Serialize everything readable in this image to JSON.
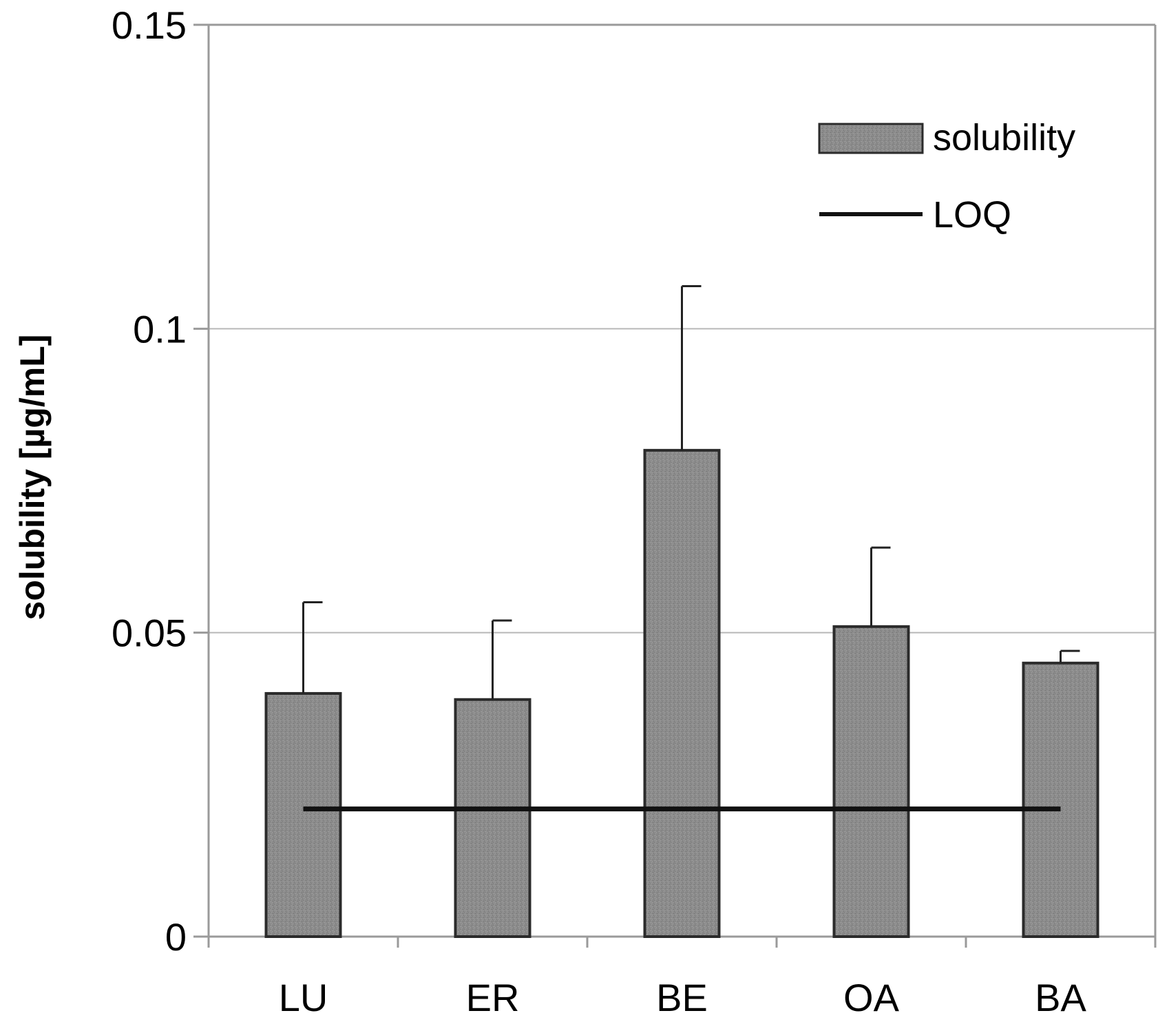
{
  "chart_data": {
    "type": "bar",
    "title": "",
    "xlabel": "",
    "ylabel": "solubility [µg/mL]",
    "ylim": [
      0,
      0.15
    ],
    "yticks": [
      0,
      0.05,
      0.1,
      0.15
    ],
    "ytick_labels": [
      "0",
      "0.05",
      "0.1",
      "0.15"
    ],
    "grid": true,
    "categories": [
      "LU",
      "ER",
      "BE",
      "OA",
      "BA"
    ],
    "series": [
      {
        "name": "solubility",
        "type": "bar",
        "values": [
          0.04,
          0.039,
          0.08,
          0.051,
          0.045
        ],
        "error_plus": [
          0.015,
          0.013,
          0.027,
          0.013,
          0.002
        ]
      },
      {
        "name": "LOQ",
        "type": "line",
        "value": 0.021
      }
    ],
    "legend": {
      "position": "top-right",
      "entries": [
        {
          "label": "solubility",
          "symbol": "bar"
        },
        {
          "label": "LOQ",
          "symbol": "line"
        }
      ]
    },
    "colors": {
      "bar_fill": "#8c8c8c",
      "bar_stroke": "#2b2b2b",
      "loq_line": "#111111",
      "grid": "#b8b8b8",
      "frame": "#9a9a9a"
    }
  }
}
